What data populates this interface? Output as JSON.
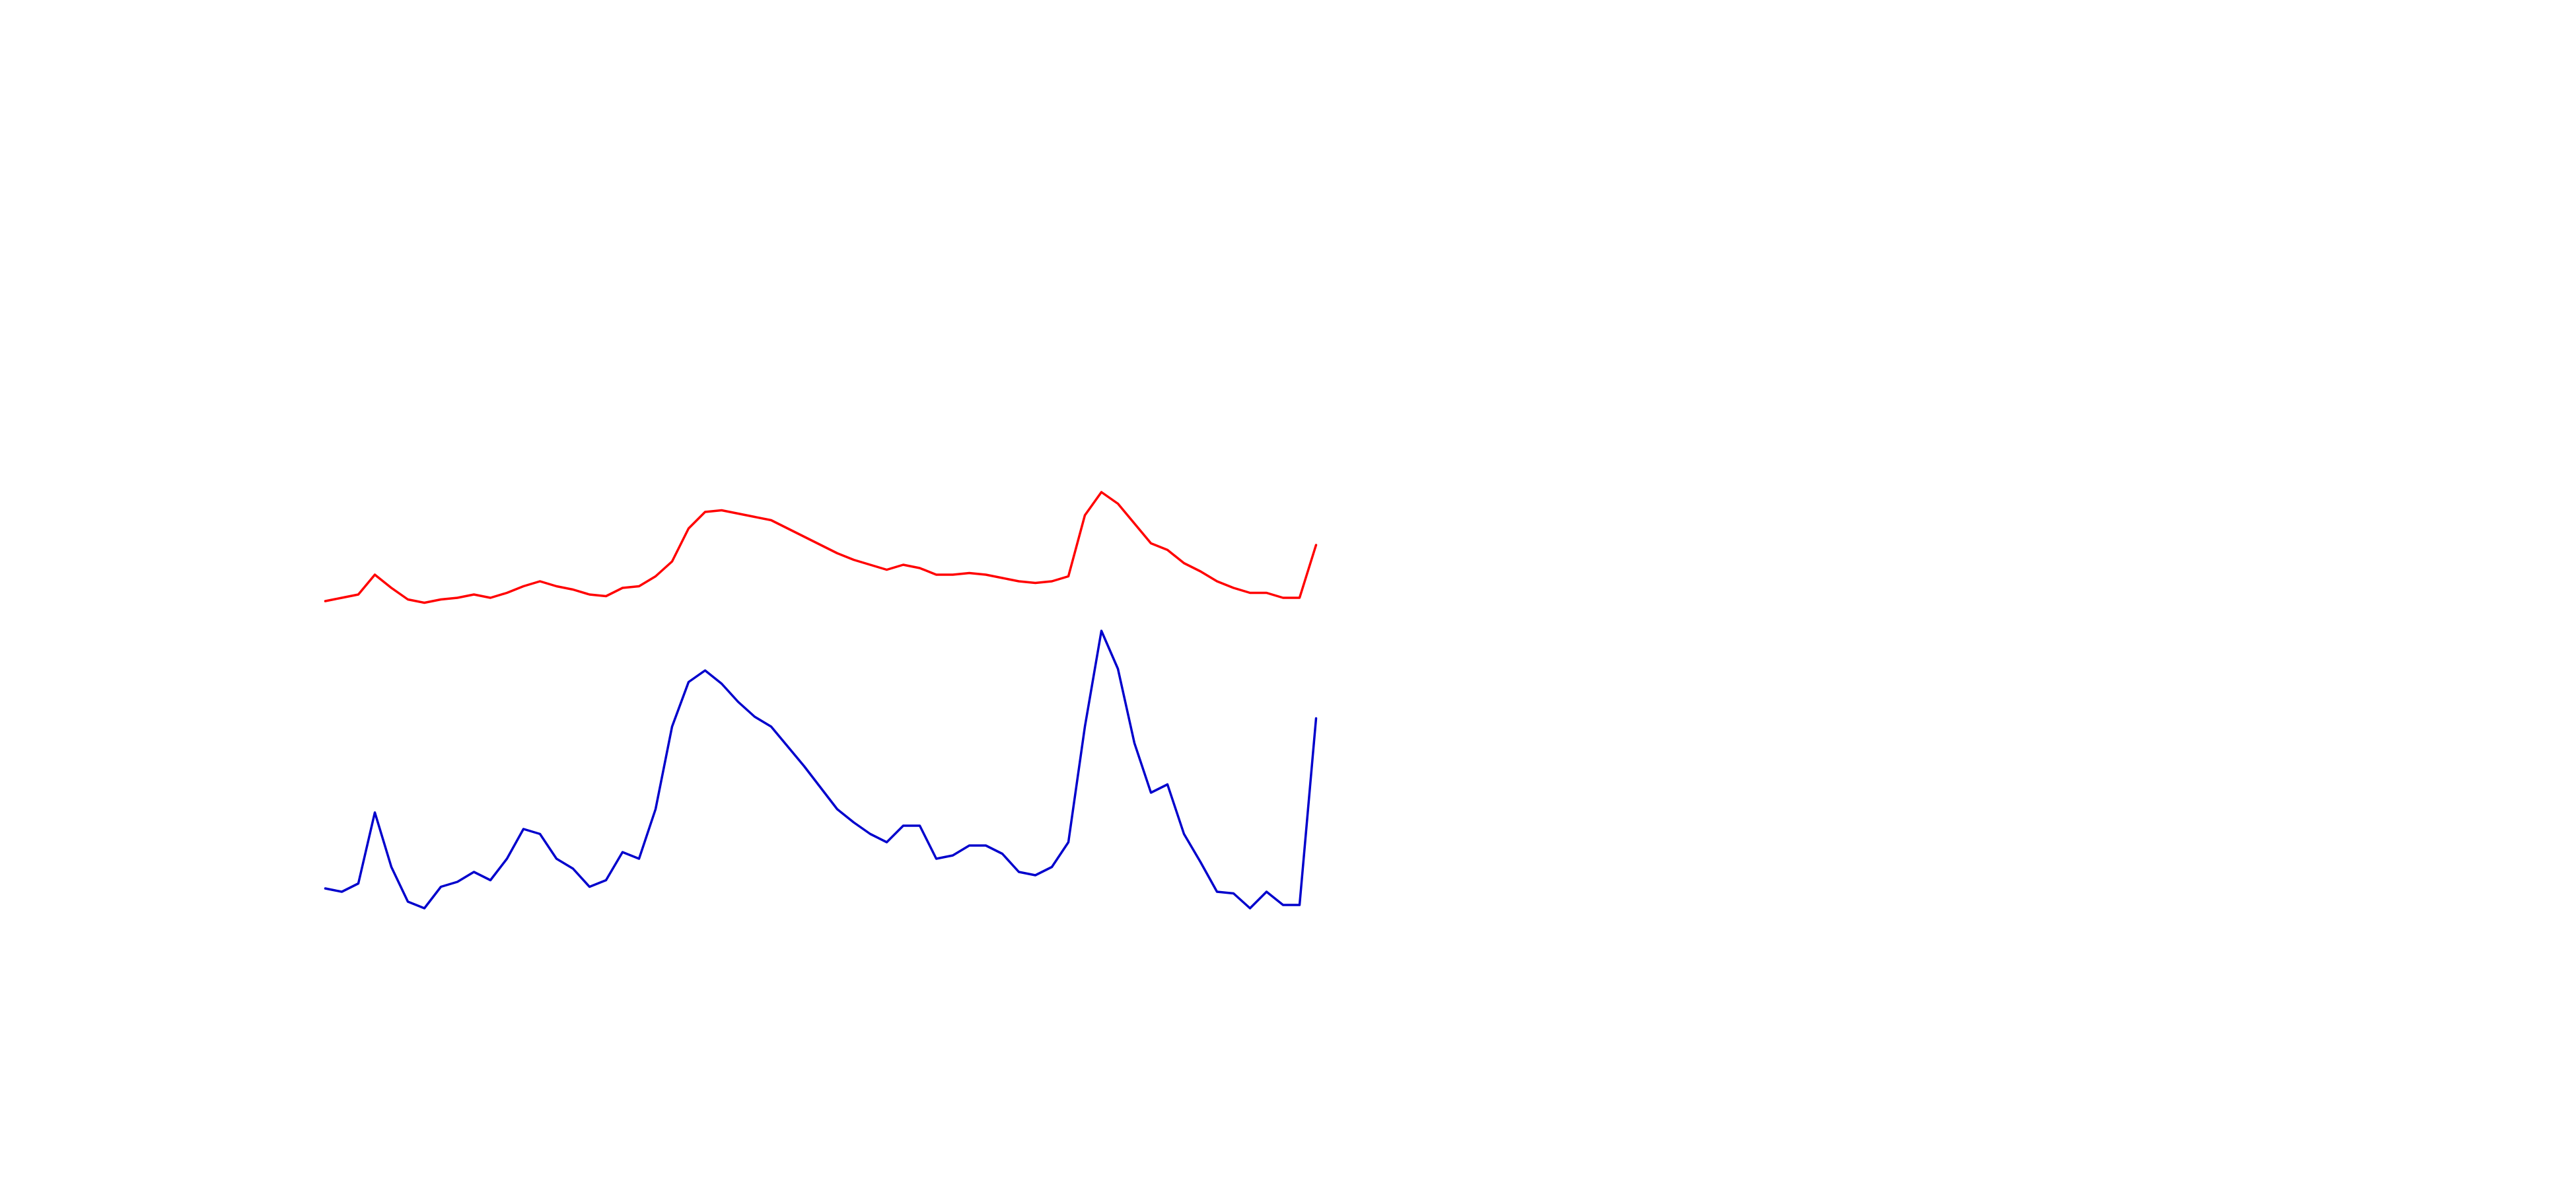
{
  "chart_data": {
    "type": "line",
    "series": [
      {
        "color": "#ff0000",
        "values": [
          356,
          358,
          360,
          372,
          364,
          357,
          355,
          357,
          358,
          360,
          358,
          361,
          365,
          368,
          365,
          363,
          360,
          359,
          364,
          365,
          371,
          380,
          400,
          410,
          411,
          409,
          407,
          405,
          400,
          395,
          390,
          385,
          381,
          378,
          375,
          378,
          376,
          372,
          372,
          373,
          372,
          370,
          368,
          367,
          368,
          371,
          408,
          422,
          415,
          403,
          391,
          387,
          379,
          374,
          368,
          364,
          361,
          361,
          358,
          358,
          390
        ]
      },
      {
        "color": "#0000cc",
        "values": [
          182,
          180,
          185,
          228,
          195,
          174,
          170,
          183,
          186,
          192,
          187,
          200,
          218,
          215,
          200,
          194,
          183,
          187,
          204,
          200,
          230,
          280,
          307,
          314,
          306,
          295,
          286,
          280,
          268,
          256,
          243,
          230,
          222,
          215,
          210,
          220,
          220,
          200,
          202,
          208,
          208,
          203,
          192,
          190,
          195,
          210,
          280,
          338,
          315,
          270,
          240,
          245,
          215,
          198,
          180,
          179,
          170,
          180,
          172,
          172,
          285
        ]
      }
    ]
  }
}
